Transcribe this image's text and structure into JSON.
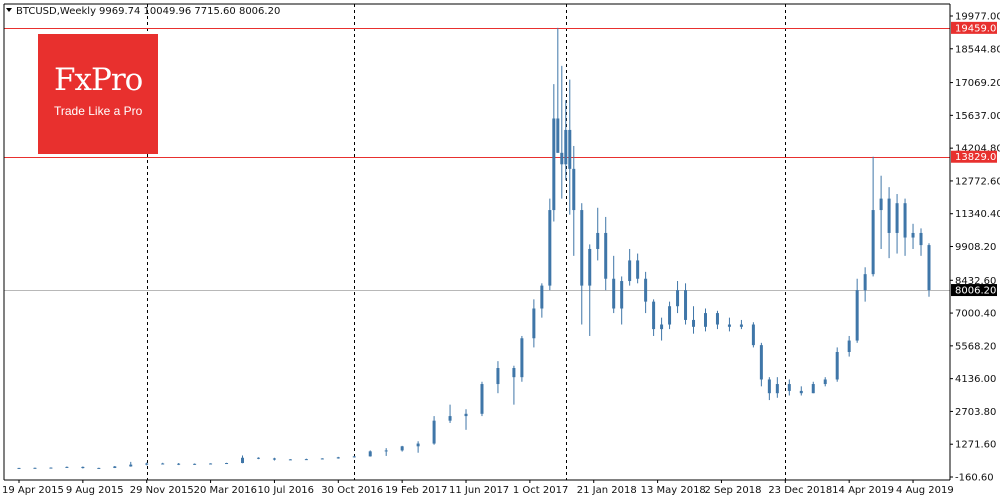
{
  "header": {
    "symbol": "BTCUSD,Weekly",
    "ohlc": "9969.74 10049.96 7715.60 8006.20"
  },
  "logo": {
    "brand": "FxPro",
    "tagline": "Trade Like a Pro"
  },
  "colors": {
    "candle": "#3f76a8",
    "level_line": "#e8302e",
    "price_line": "#b8b8b8",
    "badge_level": "#e8302e",
    "badge_price": "#000000",
    "axis": "#000000"
  },
  "chart_data": {
    "type": "candlestick",
    "y_axis_labels": [
      "19977.00",
      "18544.80",
      "17069.20",
      "15637.00",
      "14204.80",
      "12772.60",
      "11340.40",
      "9908.20",
      "8432.60",
      "7000.40",
      "5568.20",
      "4136.00",
      "2703.80",
      "1271.60",
      "-160.60"
    ],
    "ylim": [
      -160.6,
      19977.0
    ],
    "x_axis_labels": [
      "19 Apr 2015",
      "9 Aug 2015",
      "29 Nov 2015",
      "20 Mar 2016",
      "10 Jul 2016",
      "30 Oct 2016",
      "19 Feb 2017",
      "11 Jun 2017",
      "1 Oct 2017",
      "21 Jan 2018",
      "13 May 2018",
      "2 Sep 2018",
      "23 Dec 2018",
      "14 Apr 2019",
      "4 Aug 2019"
    ],
    "x_axis_label_weeks": [
      0,
      16,
      32,
      48,
      64,
      80,
      96,
      112,
      128,
      144,
      160,
      176,
      192,
      208,
      224
    ],
    "horizontal_levels": [
      {
        "value": 19459.0,
        "label": "19459.00"
      },
      {
        "value": 13829.0,
        "label": "13829.00"
      }
    ],
    "current_price": {
      "value": 8006.2,
      "label": "8006.20"
    },
    "vertical_marker_weeks": [
      32,
      84,
      137,
      192
    ],
    "series": [
      {
        "week": 0,
        "open": 225,
        "high": 240,
        "low": 218,
        "close": 235
      },
      {
        "week": 4,
        "open": 235,
        "high": 250,
        "low": 225,
        "close": 240
      },
      {
        "week": 8,
        "open": 240,
        "high": 260,
        "low": 230,
        "close": 250
      },
      {
        "week": 12,
        "open": 250,
        "high": 300,
        "low": 240,
        "close": 280
      },
      {
        "week": 16,
        "open": 280,
        "high": 300,
        "low": 210,
        "close": 230
      },
      {
        "week": 20,
        "open": 230,
        "high": 245,
        "low": 215,
        "close": 235
      },
      {
        "week": 24,
        "open": 235,
        "high": 320,
        "low": 230,
        "close": 300
      },
      {
        "week": 28,
        "open": 300,
        "high": 500,
        "low": 290,
        "close": 380
      },
      {
        "week": 32,
        "open": 380,
        "high": 470,
        "low": 350,
        "close": 430
      },
      {
        "week": 36,
        "open": 430,
        "high": 460,
        "low": 400,
        "close": 420
      },
      {
        "week": 40,
        "open": 420,
        "high": 450,
        "low": 360,
        "close": 400
      },
      {
        "week": 44,
        "open": 400,
        "high": 430,
        "low": 370,
        "close": 415
      },
      {
        "week": 48,
        "open": 415,
        "high": 440,
        "low": 410,
        "close": 430
      },
      {
        "week": 52,
        "open": 430,
        "high": 460,
        "low": 420,
        "close": 450
      },
      {
        "week": 56,
        "open": 450,
        "high": 780,
        "low": 440,
        "close": 680
      },
      {
        "week": 60,
        "open": 680,
        "high": 700,
        "low": 620,
        "close": 650
      },
      {
        "week": 64,
        "open": 650,
        "high": 680,
        "low": 560,
        "close": 600
      },
      {
        "week": 68,
        "open": 600,
        "high": 620,
        "low": 580,
        "close": 610
      },
      {
        "week": 72,
        "open": 610,
        "high": 640,
        "low": 600,
        "close": 620
      },
      {
        "week": 76,
        "open": 620,
        "high": 660,
        "low": 610,
        "close": 650
      },
      {
        "week": 80,
        "open": 650,
        "high": 720,
        "low": 640,
        "close": 700
      },
      {
        "week": 84,
        "open": 700,
        "high": 760,
        "low": 690,
        "close": 740
      },
      {
        "week": 88,
        "open": 740,
        "high": 1000,
        "low": 730,
        "close": 960
      },
      {
        "week": 92,
        "open": 960,
        "high": 1100,
        "low": 760,
        "close": 1000
      },
      {
        "week": 96,
        "open": 1000,
        "high": 1200,
        "low": 950,
        "close": 1180
      },
      {
        "week": 100,
        "open": 1180,
        "high": 1400,
        "low": 900,
        "close": 1300
      },
      {
        "week": 104,
        "open": 1300,
        "high": 2500,
        "low": 1250,
        "close": 2300
      },
      {
        "week": 108,
        "open": 2300,
        "high": 3000,
        "low": 2200,
        "close": 2500
      },
      {
        "week": 112,
        "open": 2500,
        "high": 2800,
        "low": 1900,
        "close": 2600
      },
      {
        "week": 116,
        "open": 2600,
        "high": 4000,
        "low": 2500,
        "close": 3900
      },
      {
        "week": 120,
        "open": 3900,
        "high": 4900,
        "low": 3500,
        "close": 4600
      },
      {
        "week": 124,
        "open": 4600,
        "high": 4700,
        "low": 3000,
        "close": 4200
      },
      {
        "week": 126,
        "open": 4200,
        "high": 6000,
        "low": 4000,
        "close": 5900
      },
      {
        "week": 129,
        "open": 5900,
        "high": 7600,
        "low": 5500,
        "close": 7200
      },
      {
        "week": 131,
        "open": 7200,
        "high": 8300,
        "low": 6800,
        "close": 8200
      },
      {
        "week": 133,
        "open": 8200,
        "high": 12000,
        "low": 8000,
        "close": 11500
      },
      {
        "week": 134,
        "open": 11500,
        "high": 17000,
        "low": 11000,
        "close": 15500
      },
      {
        "week": 135,
        "open": 15500,
        "high": 19459,
        "low": 14000,
        "close": 14000
      },
      {
        "week": 136,
        "open": 14000,
        "high": 17800,
        "low": 12000,
        "close": 13500
      },
      {
        "week": 137,
        "open": 13500,
        "high": 16300,
        "low": 12800,
        "close": 15000
      },
      {
        "week": 138,
        "open": 15000,
        "high": 17200,
        "low": 11300,
        "close": 13300
      },
      {
        "week": 139,
        "open": 13300,
        "high": 14300,
        "low": 9500,
        "close": 11500
      },
      {
        "week": 141,
        "open": 11500,
        "high": 11800,
        "low": 6500,
        "close": 8200
      },
      {
        "week": 143,
        "open": 8200,
        "high": 10000,
        "low": 6000,
        "close": 9800
      },
      {
        "week": 145,
        "open": 9800,
        "high": 11600,
        "low": 9300,
        "close": 10500
      },
      {
        "week": 147,
        "open": 10500,
        "high": 11200,
        "low": 8000,
        "close": 8500
      },
      {
        "week": 149,
        "open": 8500,
        "high": 9500,
        "low": 7000,
        "close": 7200
      },
      {
        "week": 151,
        "open": 7200,
        "high": 8600,
        "low": 6500,
        "close": 8400
      },
      {
        "week": 153,
        "open": 8400,
        "high": 9800,
        "low": 8200,
        "close": 9300
      },
      {
        "week": 155,
        "open": 9300,
        "high": 9600,
        "low": 8300,
        "close": 8500
      },
      {
        "week": 157,
        "open": 8500,
        "high": 8800,
        "low": 7000,
        "close": 7500
      },
      {
        "week": 159,
        "open": 7500,
        "high": 7600,
        "low": 6000,
        "close": 6300
      },
      {
        "week": 161,
        "open": 6300,
        "high": 6800,
        "low": 5800,
        "close": 6500
      },
      {
        "week": 163,
        "open": 6500,
        "high": 7500,
        "low": 6300,
        "close": 7300
      },
      {
        "week": 165,
        "open": 7300,
        "high": 8400,
        "low": 7000,
        "close": 8000
      },
      {
        "week": 167,
        "open": 8000,
        "high": 8300,
        "low": 6500,
        "close": 6700
      },
      {
        "week": 169,
        "open": 6700,
        "high": 7300,
        "low": 6100,
        "close": 6400
      },
      {
        "week": 172,
        "open": 6400,
        "high": 7200,
        "low": 6200,
        "close": 7000
      },
      {
        "week": 175,
        "open": 7000,
        "high": 7100,
        "low": 6300,
        "close": 6500
      },
      {
        "week": 178,
        "open": 6500,
        "high": 6800,
        "low": 6200,
        "close": 6400
      },
      {
        "week": 181,
        "open": 6400,
        "high": 6700,
        "low": 6300,
        "close": 6500
      },
      {
        "week": 184,
        "open": 6500,
        "high": 6600,
        "low": 5500,
        "close": 5600
      },
      {
        "week": 186,
        "open": 5600,
        "high": 5700,
        "low": 3800,
        "close": 4100
      },
      {
        "week": 188,
        "open": 4100,
        "high": 4200,
        "low": 3200,
        "close": 3500
      },
      {
        "week": 190,
        "open": 3500,
        "high": 4200,
        "low": 3300,
        "close": 3900
      },
      {
        "week": 193,
        "open": 3900,
        "high": 4100,
        "low": 3400,
        "close": 3600
      },
      {
        "week": 196,
        "open": 3600,
        "high": 3800,
        "low": 3400,
        "close": 3500
      },
      {
        "week": 199,
        "open": 3500,
        "high": 4000,
        "low": 3500,
        "close": 3900
      },
      {
        "week": 202,
        "open": 3900,
        "high": 4200,
        "low": 3800,
        "close": 4100
      },
      {
        "week": 205,
        "open": 4100,
        "high": 5500,
        "low": 4000,
        "close": 5300
      },
      {
        "week": 208,
        "open": 5300,
        "high": 6000,
        "low": 5100,
        "close": 5800
      },
      {
        "week": 210,
        "open": 5800,
        "high": 8500,
        "low": 5700,
        "close": 8000
      },
      {
        "week": 212,
        "open": 8000,
        "high": 9000,
        "low": 7500,
        "close": 8700
      },
      {
        "week": 214,
        "open": 8700,
        "high": 13829,
        "low": 8600,
        "close": 11500
      },
      {
        "week": 216,
        "open": 11500,
        "high": 13000,
        "low": 9800,
        "close": 12000
      },
      {
        "week": 218,
        "open": 12000,
        "high": 12500,
        "low": 9400,
        "close": 10500
      },
      {
        "week": 220,
        "open": 10500,
        "high": 12200,
        "low": 9600,
        "close": 11800
      },
      {
        "week": 222,
        "open": 11800,
        "high": 12000,
        "low": 9500,
        "close": 10300
      },
      {
        "week": 224,
        "open": 10300,
        "high": 10900,
        "low": 9800,
        "close": 10500
      },
      {
        "week": 226,
        "open": 10500,
        "high": 10700,
        "low": 9500,
        "close": 9969.74
      },
      {
        "week": 228,
        "open": 9969.74,
        "high": 10049.96,
        "low": 7715.6,
        "close": 8006.2
      }
    ]
  }
}
